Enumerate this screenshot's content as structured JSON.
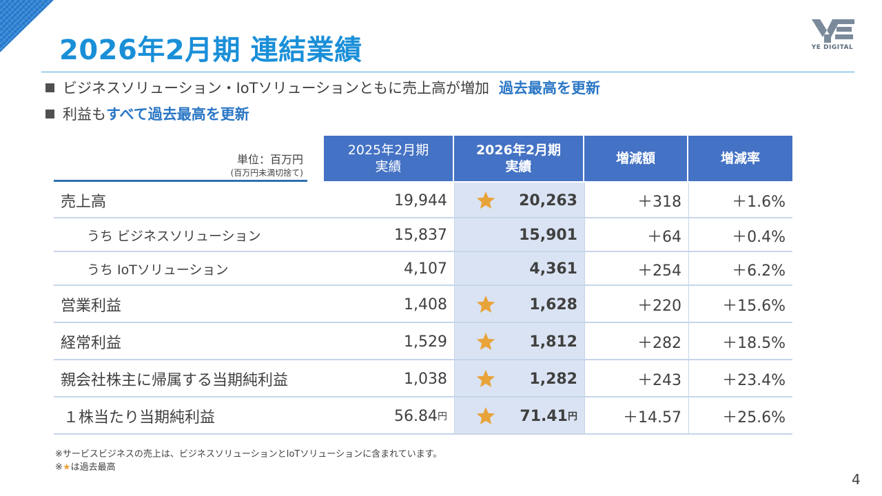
{
  "header": {
    "title": "2026年2月期 連結業績",
    "logo_text": "YE DIGITAL"
  },
  "bullets": [
    {
      "text": "ビジネスソリューション・IoTソリューションともに売上高が増加",
      "highlight": "過去最高を更新"
    },
    {
      "text": "利益も",
      "highlight": "すべて過去最高を更新"
    }
  ],
  "table": {
    "unit": "単位：百万円",
    "unit_note": "(百万円未満切捨て)",
    "columns": [
      {
        "line1": "2025年2月期",
        "line2": "実績"
      },
      {
        "line1": "2026年2月期",
        "line2": "実績"
      },
      {
        "line1": "増減額",
        "line2": ""
      },
      {
        "line1": "増減率",
        "line2": ""
      }
    ],
    "rows": [
      {
        "label": "売上高",
        "prev": "19,944",
        "curr": "20,263",
        "diff": "＋318",
        "rate": "＋1.6%",
        "star": true
      },
      {
        "label": "うち ビジネスソリューション",
        "prev": "15,837",
        "curr": "15,901",
        "diff": "＋64",
        "rate": "＋0.4%",
        "star": false
      },
      {
        "label": "うち IoTソリューション",
        "prev": "4,107",
        "curr": "4,361",
        "diff": "＋254",
        "rate": "＋6.2%",
        "star": false
      },
      {
        "label": "営業利益",
        "prev": "1,408",
        "curr": "1,628",
        "diff": "＋220",
        "rate": "＋15.6%",
        "star": true
      },
      {
        "label": "経常利益",
        "prev": "1,529",
        "curr": "1,812",
        "diff": "＋282",
        "rate": "＋18.5%",
        "star": true
      },
      {
        "label": "親会社株主に帰属する当期純利益",
        "prev": "1,038",
        "curr": "1,282",
        "diff": "＋243",
        "rate": "＋23.4%",
        "star": true
      },
      {
        "label": "１株当たり当期純利益",
        "prev": "56.84",
        "curr": "71.41",
        "diff": "＋14.57",
        "rate": "＋25.6%",
        "star": true,
        "unit_suffix": "円"
      }
    ]
  },
  "footnotes": {
    "line1": "※サービスビジネスの売上は、ビジネスソリューションとIoTソリューションに含まれています。",
    "line2_prefix": "※",
    "line2_star": "★",
    "line2_suffix": "は過去最高"
  },
  "page_number": "4",
  "colors": {
    "title": "#1a8fd8",
    "header_bg": "#4472c4",
    "highlight_col": "#dae3f3",
    "star": "#e8a33a",
    "accent_text": "#2a76c5"
  }
}
